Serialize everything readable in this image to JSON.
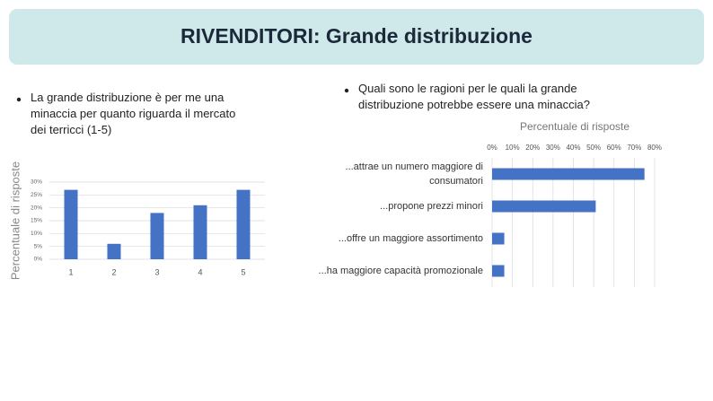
{
  "title": "RIVENDITORI: Grande distribuzione",
  "chart_data": [
    {
      "type": "bar",
      "title": "La grande distribuzione è per me una minaccia per quanto riguarda il mercato dei terricci (1-5)",
      "ylabel": "Percentuale di risposte",
      "categories": [
        "1",
        "2",
        "3",
        "4",
        "5"
      ],
      "values": [
        27,
        6,
        18,
        21,
        27
      ],
      "color": "#4472c4",
      "ylim": [
        0,
        30
      ],
      "yticks": [
        {
          "value": 0,
          "label": "0%"
        },
        {
          "value": 5,
          "label": "5%"
        },
        {
          "value": 10,
          "label": "10%"
        },
        {
          "value": 15,
          "label": "15%"
        },
        {
          "value": 20,
          "label": "20%"
        },
        {
          "value": 25,
          "label": "25%"
        },
        {
          "value": 30,
          "label": "30%"
        }
      ],
      "grid": true
    },
    {
      "type": "barh",
      "title": "Quali sono le ragioni per le quali la grande distribuzione potrebbe essere una minaccia?",
      "xlabel": "Percentuale di risposte",
      "categories": [
        "...attrae un numero maggiore di consumatori",
        "...propone prezzi minori",
        "...offre un maggiore assortimento",
        "...ha maggiore capacità promozionale"
      ],
      "values": [
        75,
        51,
        6,
        6
      ],
      "color": "#4472c4",
      "xlim": [
        0,
        80
      ],
      "xticks": [
        {
          "value": 0,
          "label": "0%"
        },
        {
          "value": 10,
          "label": "10%"
        },
        {
          "value": 20,
          "label": "20%"
        },
        {
          "value": 30,
          "label": "30%"
        },
        {
          "value": 40,
          "label": "40%"
        },
        {
          "value": 50,
          "label": "50%"
        },
        {
          "value": 60,
          "label": "60%"
        },
        {
          "value": 70,
          "label": "70%"
        },
        {
          "value": 80,
          "label": "80%"
        }
      ],
      "grid": true
    }
  ]
}
